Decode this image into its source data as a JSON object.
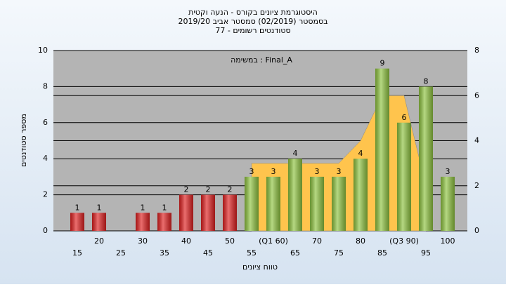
{
  "chart_data": {
    "type": "bar",
    "title": "היסטוגרמת ציונים בקורס - הנעה וקטית",
    "subtitle": "בסמסטר  (02/2019)  סמסטר אביב 2019/20",
    "subtitle2": "סטודנטים רשומים - 77",
    "annotation": "במשימה : Final_A",
    "x_label": "טווח ציונים",
    "y_label": "מספר סטודנטים",
    "categories": [
      "15",
      "20",
      "25",
      "30",
      "35",
      "40",
      "45",
      "50",
      "55",
      "(Q1 60)",
      "65",
      "70",
      "75",
      "80",
      "85",
      "(Q3 90)",
      "95",
      "100"
    ],
    "series": [
      {
        "colors": [
          "#e02020",
          "#e02020",
          "#e02020",
          "#e02020",
          "#e02020",
          "#e02020",
          "#e02020",
          "#e02020",
          "#8fc440",
          "#8fc440",
          "#8fc440",
          "#8fc440",
          "#8fc440",
          "#8fc440",
          "#8fc440",
          "#8fc440",
          "#8fc440",
          "#8fc440"
        ],
        "values": [
          1,
          1,
          null,
          1,
          1,
          2,
          2,
          2,
          3,
          3,
          4,
          3,
          3,
          4,
          9,
          6,
          8,
          3
        ]
      },
      {
        "type": "area",
        "axis": "y2",
        "color": "#ffc44d",
        "values": [
          null,
          null,
          null,
          null,
          null,
          null,
          null,
          null,
          3,
          3,
          3,
          3,
          3,
          4,
          6,
          6,
          2,
          null
        ]
      }
    ],
    "ylim": [
      0,
      10
    ],
    "yticks": [
      0,
      2,
      4,
      6,
      8,
      10
    ],
    "y2lim": [
      0,
      8
    ],
    "y2ticks": [
      0,
      2,
      4,
      6,
      8
    ],
    "grid": true
  }
}
